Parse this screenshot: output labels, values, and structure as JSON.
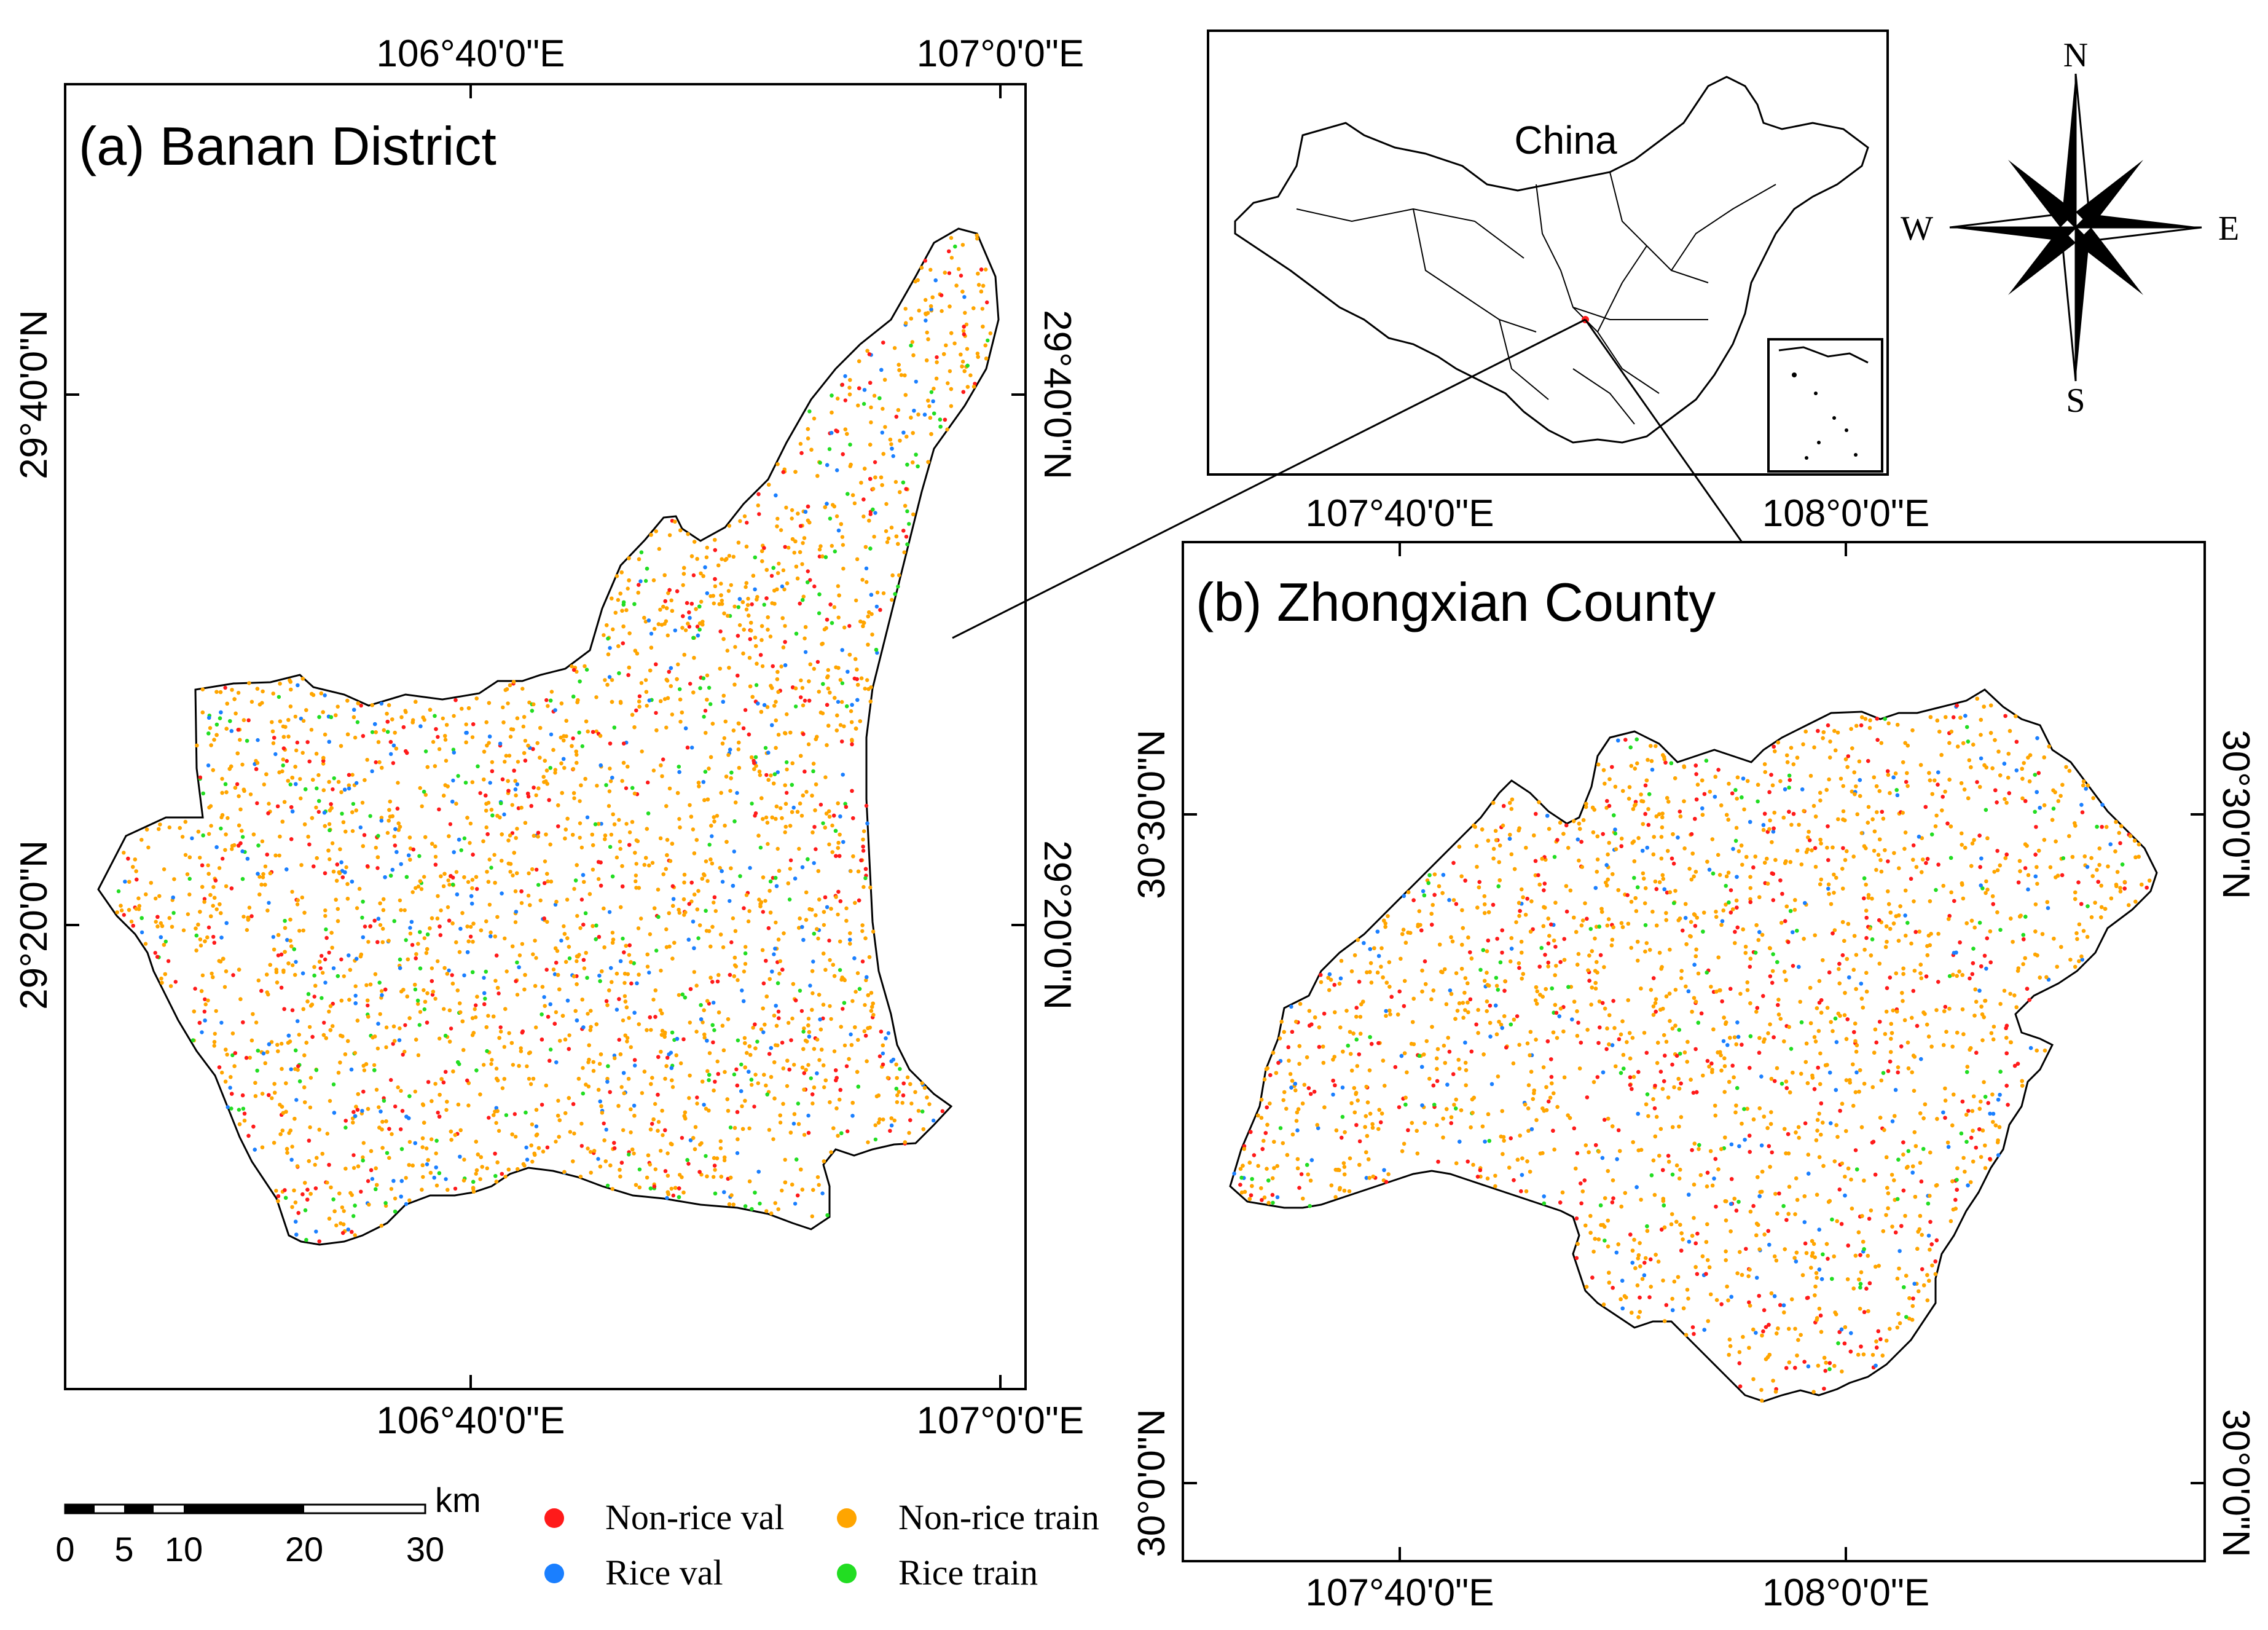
{
  "panel_a": {
    "title": "(a) Banan District",
    "top_ticks": [
      "106°40'0\"E",
      "107°0'0\"E"
    ],
    "bottom_ticks": [
      "106°40'0\"E",
      "107°0'0\"E"
    ],
    "left_ticks": [
      "29°40'0\"N",
      "29°20'0\"N"
    ],
    "right_ticks": [
      "29°40'0\"N",
      "29°20'0\"N"
    ]
  },
  "panel_b": {
    "title": "(b) Zhongxian County",
    "top_ticks": [
      "107°40'0\"E",
      "108°0'0\"E"
    ],
    "bottom_ticks": [
      "107°40'0\"E",
      "108°0'0\"E"
    ],
    "left_ticks": [
      "30°30'0\"N",
      "30°0'0\"N"
    ],
    "right_ticks": [
      "30°30'0\"N",
      "30°0'0\"N"
    ]
  },
  "inset": {
    "label": "China"
  },
  "north_arrow": {
    "n": "N",
    "s": "S",
    "e": "E",
    "w": "W"
  },
  "scale_bar": {
    "unit": "km",
    "ticks": [
      "0",
      "5",
      "10",
      "20",
      "30"
    ]
  },
  "legend": {
    "items": [
      {
        "label": "Non-rice val",
        "color": "#ff1a1a"
      },
      {
        "label": "Non-rice train",
        "color": "#ffa500"
      },
      {
        "label": "Rice val",
        "color": "#1a7fff"
      },
      {
        "label": "Rice train",
        "color": "#22dd22"
      }
    ]
  },
  "colors": {
    "non_rice_val": "#ff1a1a",
    "non_rice_train": "#ffa500",
    "rice_val": "#1a7fff",
    "rice_train": "#22dd22",
    "frame": "#000000"
  }
}
